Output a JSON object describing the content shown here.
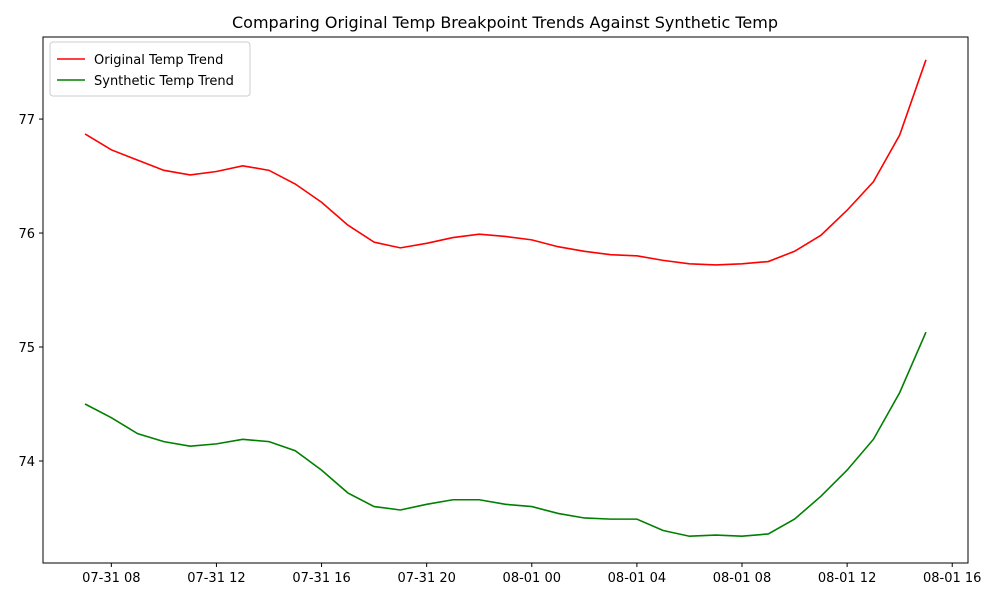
{
  "chart_data": {
    "type": "line",
    "title": "Comparing Original Temp Breakpoint Trends Against Synthetic Temp",
    "x": [
      "07-31 07",
      "07-31 08",
      "07-31 09",
      "07-31 10",
      "07-31 11",
      "07-31 12",
      "07-31 13",
      "07-31 14",
      "07-31 15",
      "07-31 16",
      "07-31 17",
      "07-31 18",
      "07-31 19",
      "07-31 20",
      "07-31 21",
      "07-31 22",
      "07-31 23",
      "08-01 00",
      "08-01 01",
      "08-01 02",
      "08-01 03",
      "08-01 04",
      "08-01 05",
      "08-01 06",
      "08-01 07",
      "08-01 08",
      "08-01 09",
      "08-01 10",
      "08-01 11",
      "08-01 12",
      "08-01 13",
      "08-01 14",
      "08-01 15"
    ],
    "series": [
      {
        "name": "Original Temp Trend",
        "color": "#ff0000",
        "values": [
          76.87,
          76.73,
          76.64,
          76.55,
          76.51,
          76.54,
          76.59,
          76.55,
          76.43,
          76.27,
          76.07,
          75.92,
          75.87,
          75.91,
          75.96,
          75.99,
          75.97,
          75.94,
          75.88,
          75.84,
          75.81,
          75.8,
          75.76,
          75.73,
          75.72,
          75.73,
          75.75,
          75.84,
          75.98,
          76.2,
          76.45,
          76.86,
          77.52
        ]
      },
      {
        "name": "Synthetic Temp Trend",
        "color": "#008000",
        "values": [
          74.5,
          74.38,
          74.24,
          74.17,
          74.13,
          74.15,
          74.19,
          74.17,
          74.09,
          73.92,
          73.72,
          73.6,
          73.57,
          73.62,
          73.66,
          73.66,
          73.62,
          73.6,
          73.54,
          73.5,
          73.49,
          73.49,
          73.39,
          73.34,
          73.35,
          73.34,
          73.36,
          73.49,
          73.69,
          73.92,
          74.19,
          74.6,
          75.13
        ]
      }
    ],
    "xlim": [
      "07-31 05:24",
      "08-01 16:36"
    ],
    "xticks": [
      "07-31 08",
      "07-31 12",
      "07-31 16",
      "07-31 20",
      "08-01 00",
      "08-01 04",
      "08-01 08",
      "08-01 12",
      "08-01 16"
    ],
    "ylim": [
      73.105,
      77.72
    ],
    "yticks": [
      74,
      75,
      76,
      77
    ],
    "legend": "upper left"
  }
}
